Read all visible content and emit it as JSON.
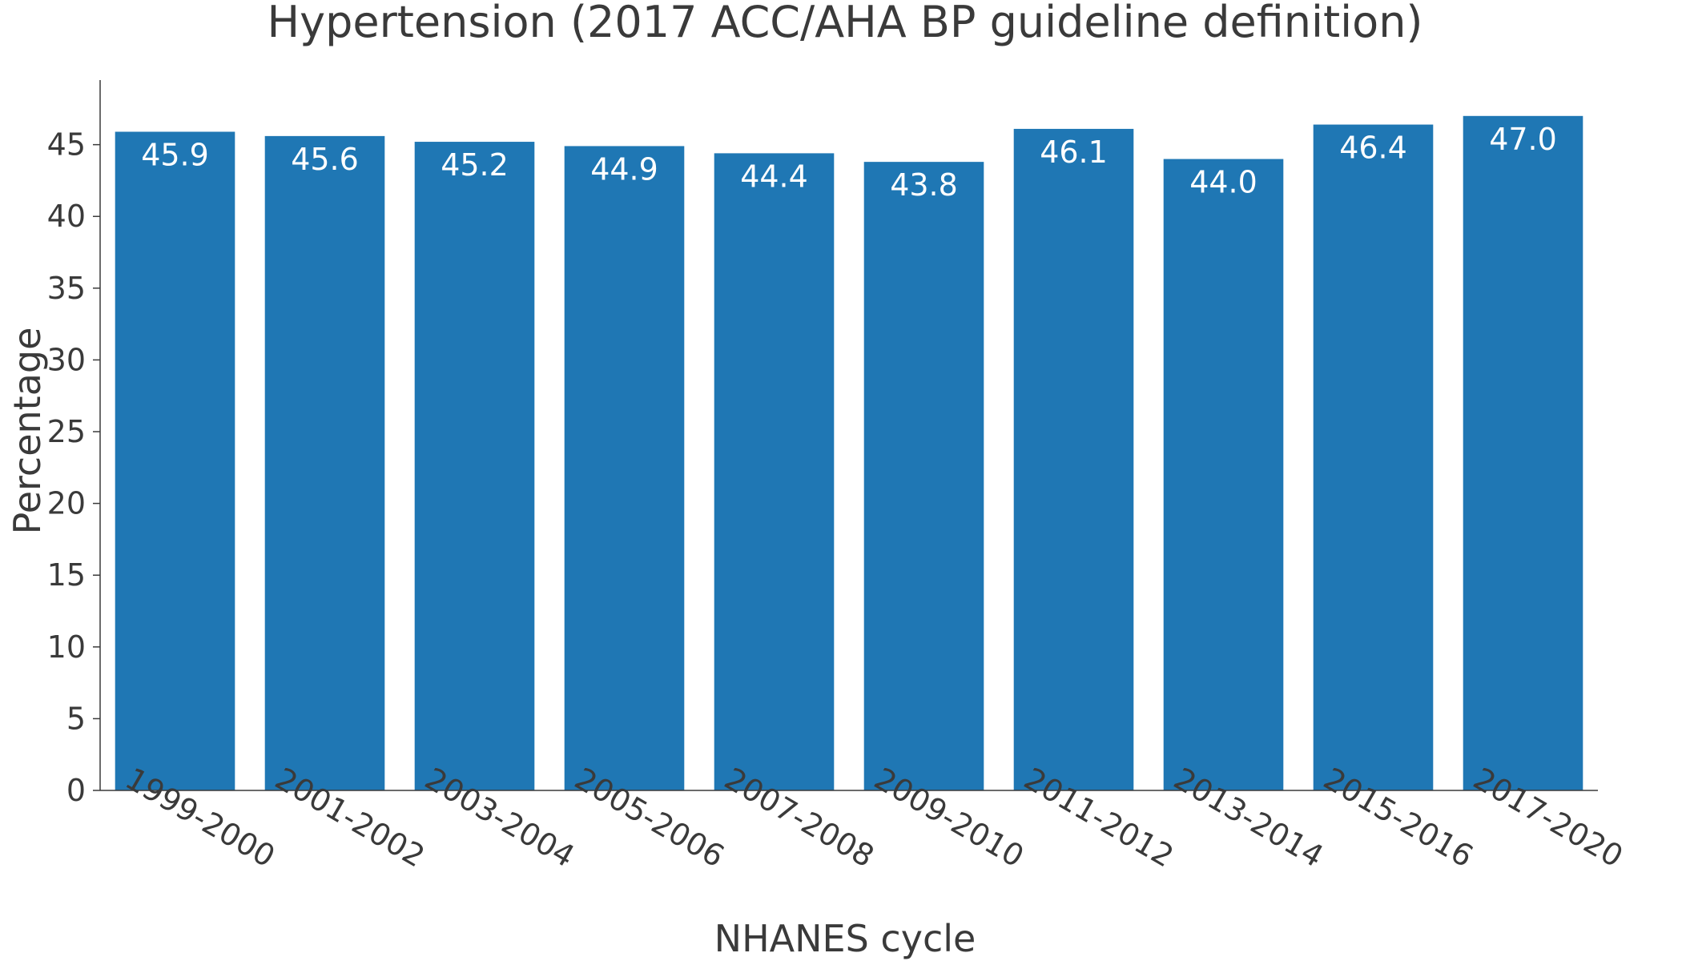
{
  "chart_data": {
    "type": "bar",
    "title": "Hypertension (2017 ACC/AHA BP guideline definition)",
    "xlabel": "NHANES cycle",
    "ylabel": "Percentage",
    "categories": [
      "1999-2000",
      "2001-2002",
      "2003-2004",
      "2005-2006",
      "2007-2008",
      "2009-2010",
      "2011-2012",
      "2013-2014",
      "2015-2016",
      "2017-2020"
    ],
    "values": [
      45.9,
      45.6,
      45.2,
      44.9,
      44.4,
      43.8,
      46.1,
      44.0,
      46.4,
      47.0
    ],
    "data_labels": [
      "45.9",
      "45.6",
      "45.2",
      "44.9",
      "44.4",
      "43.8",
      "46.1",
      "44.0",
      "46.4",
      "47.0"
    ],
    "ylim": [
      0,
      49.5
    ],
    "yticks": [
      0,
      5,
      10,
      15,
      20,
      25,
      30,
      35,
      40,
      45
    ],
    "grid": false,
    "colors": {
      "bar": "#1f77b4",
      "axis": "#3a3a3a",
      "bar_label": "#ffffff"
    }
  }
}
